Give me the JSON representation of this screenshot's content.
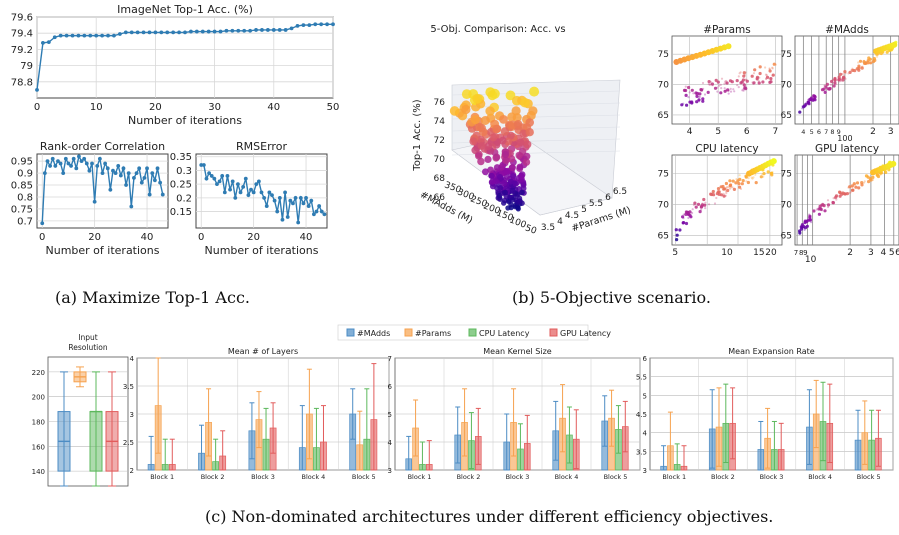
{
  "captions": {
    "a": "(a) Maximize Top-1 Acc.",
    "b": "(b) 5-Objective scenario.",
    "c": "(c) Non-dominated architectures under different efficiency objectives."
  },
  "colors": {
    "line": "#2f7cb3",
    "mAdds": "#4c8cc4",
    "params": "#f6a24f",
    "cpu": "#5cb85c",
    "gpu": "#e25c5c",
    "scatter_low": "#3b1f8a",
    "scatter_high": "#fcd23a"
  },
  "chart_data": [
    {
      "id": "top1",
      "type": "line",
      "title": "ImageNet Top-1 Acc. (%)",
      "xlabel": "Number of iterations",
      "ylabel": "",
      "xlim": [
        0,
        50
      ],
      "ylim": [
        78.6,
        79.6
      ],
      "xticks": [
        0,
        10,
        20,
        30,
        40,
        50
      ],
      "yticks": [
        78.8,
        79,
        79.2,
        79.4,
        79.6
      ],
      "ytick_labels": [
        "78.8",
        "79",
        "79.2",
        "79.4",
        "79.6"
      ],
      "x": [
        0,
        1,
        2,
        3,
        4,
        5,
        6,
        7,
        8,
        9,
        10,
        11,
        12,
        13,
        14,
        15,
        16,
        17,
        18,
        19,
        20,
        21,
        22,
        23,
        24,
        25,
        26,
        27,
        28,
        29,
        30,
        31,
        32,
        33,
        34,
        35,
        36,
        37,
        38,
        39,
        40,
        41,
        42,
        43,
        44,
        45,
        46,
        47,
        48,
        49,
        50
      ],
      "values": [
        78.7,
        79.28,
        79.29,
        79.35,
        79.37,
        79.37,
        79.37,
        79.37,
        79.37,
        79.37,
        79.37,
        79.37,
        79.37,
        79.37,
        79.39,
        79.41,
        79.41,
        79.41,
        79.41,
        79.41,
        79.41,
        79.41,
        79.41,
        79.41,
        79.41,
        79.41,
        79.42,
        79.42,
        79.42,
        79.42,
        79.42,
        79.42,
        79.43,
        79.43,
        79.43,
        79.43,
        79.43,
        79.44,
        79.44,
        79.44,
        79.44,
        79.44,
        79.44,
        79.46,
        79.49,
        79.5,
        79.5,
        79.51,
        79.51,
        79.51,
        79.51
      ],
      "grid": true
    },
    {
      "id": "rank",
      "type": "line",
      "title": "Rank-order Correlation",
      "xlabel": "Number of iterations",
      "ylabel": "",
      "xlim": [
        -2,
        48
      ],
      "ylim": [
        0.67,
        0.98
      ],
      "xticks": [
        0,
        20,
        40
      ],
      "yticks": [
        0.7,
        0.75,
        0.8,
        0.85,
        0.9,
        0.95
      ],
      "ytick_labels": [
        "0.7",
        "0.75",
        "0.8",
        "0.85",
        "0.9",
        "0.95"
      ],
      "values": [
        0.69,
        0.9,
        0.95,
        0.93,
        0.96,
        0.93,
        0.95,
        0.94,
        0.9,
        0.96,
        0.94,
        0.93,
        0.96,
        0.92,
        0.97,
        0.95,
        0.96,
        0.94,
        0.91,
        0.94,
        0.78,
        0.93,
        0.96,
        0.9,
        0.94,
        0.92,
        0.83,
        0.91,
        0.9,
        0.93,
        0.89,
        0.92,
        0.85,
        0.9,
        0.76,
        0.88,
        0.9,
        0.92,
        0.86,
        0.88,
        0.92,
        0.81,
        0.9,
        0.87,
        0.92,
        0.86,
        0.81
      ],
      "grid": true
    },
    {
      "id": "rmse",
      "type": "line",
      "title": "RMSError",
      "xlabel": "Number of iterations",
      "ylabel": "",
      "xlim": [
        -2,
        48
      ],
      "ylim": [
        0.09,
        0.36
      ],
      "xticks": [
        0,
        20,
        40
      ],
      "yticks": [
        0.15,
        0.2,
        0.25,
        0.3,
        0.35
      ],
      "ytick_labels": [
        "0.15",
        "0.2",
        "0.25",
        "0.3",
        "0.35"
      ],
      "values": [
        0.32,
        0.32,
        0.27,
        0.29,
        0.28,
        0.27,
        0.25,
        0.26,
        0.28,
        0.22,
        0.28,
        0.23,
        0.26,
        0.2,
        0.25,
        0.22,
        0.24,
        0.27,
        0.21,
        0.23,
        0.22,
        0.25,
        0.26,
        0.22,
        0.2,
        0.17,
        0.22,
        0.21,
        0.19,
        0.15,
        0.2,
        0.12,
        0.22,
        0.13,
        0.19,
        0.18,
        0.2,
        0.11,
        0.2,
        0.18,
        0.2,
        0.17,
        0.19,
        0.14,
        0.15,
        0.17,
        0.15,
        0.14
      ],
      "grid": true
    },
    {
      "id": "scatter3d",
      "type": "scatter",
      "title": "5-Obj. Comparison: Acc. vs",
      "zlabel": "Top-1 Acc. (%)",
      "xlabel": "#Params (M)",
      "ylabel": "#MAdds (M)",
      "ztick_labels": [
        "66",
        "68",
        "70",
        "72",
        "74",
        "76"
      ],
      "xtick_labels": [
        "3.5",
        "4",
        "4.5",
        "5",
        "5.5",
        "6",
        "6.5"
      ],
      "ytick_labels": [
        "350",
        "300",
        "250",
        "200",
        "150",
        "100",
        "50"
      ]
    },
    {
      "id": "params",
      "type": "scatter",
      "title": "#Params",
      "xticks": [
        4,
        5,
        6,
        7
      ],
      "yticks": [
        65,
        70,
        75
      ],
      "xlim": [
        3.4,
        7.2
      ],
      "ylim": [
        63.5,
        78
      ]
    },
    {
      "id": "madds",
      "type": "scatter",
      "title": "#MAdds",
      "log_x": true,
      "xtick_labels": [
        "4",
        "5",
        "6",
        "7",
        "8",
        "9",
        "100",
        "2",
        "3"
      ],
      "yticks": [
        65,
        70,
        75
      ],
      "ylim": [
        63.5,
        78
      ]
    },
    {
      "id": "cpu",
      "type": "scatter",
      "title": "CPU latency",
      "xticks": [
        5,
        10,
        15,
        20
      ],
      "yticks": [
        65,
        70,
        75
      ],
      "xlim": [
        4.5,
        22
      ],
      "ylim": [
        63.5,
        78
      ]
    },
    {
      "id": "gpu",
      "type": "scatter",
      "title": "GPU latency",
      "log_x": true,
      "xtick_labels": [
        "7",
        "8",
        "9",
        "10",
        "2",
        "3",
        "4",
        "5",
        "6"
      ],
      "yticks": [
        65,
        70,
        75
      ],
      "ylim": [
        63.5,
        78
      ]
    },
    {
      "id": "resolution",
      "type": "box",
      "title": "Input\nResolution",
      "yticks": [
        140,
        160,
        180,
        200,
        220
      ],
      "ylim": [
        128,
        232
      ],
      "boxes": [
        {
          "name": "#MAdds",
          "min": 128,
          "q1": 140,
          "median": 164,
          "q3": 188,
          "max": 220
        },
        {
          "name": "#Params",
          "min": 208,
          "q1": 212,
          "median": 216,
          "q3": 220,
          "max": 224
        },
        {
          "name": "CPU Latency",
          "min": 128,
          "q1": 140,
          "median": 188,
          "q3": 188,
          "max": 220
        },
        {
          "name": "GPU Latency",
          "min": 128,
          "q1": 140,
          "median": 164,
          "q3": 188,
          "max": 220
        }
      ]
    },
    {
      "id": "layers",
      "type": "bar",
      "title": "Mean # of Layers",
      "categories": [
        "Block 1",
        "Block 2",
        "Block 3",
        "Block 4",
        "Block 5"
      ],
      "ylim": [
        2,
        4
      ],
      "yticks": [
        2,
        2.5,
        3,
        3.5,
        4
      ],
      "series": [
        {
          "name": "#MAdds",
          "values": [
            2.1,
            2.3,
            2.7,
            2.4,
            3.0
          ],
          "err": [
            0.5,
            0.5,
            0.5,
            0.75,
            0.45
          ]
        },
        {
          "name": "#Params",
          "values": [
            3.15,
            2.85,
            2.9,
            3.0,
            2.45
          ],
          "err": [
            0.85,
            0.6,
            0.5,
            0.8,
            0.6
          ]
        },
        {
          "name": "CPU Latency",
          "values": [
            2.1,
            2.15,
            2.55,
            2.4,
            2.55
          ],
          "err": [
            0.45,
            0.4,
            0.55,
            0.7,
            0.9
          ]
        },
        {
          "name": "GPU Latency",
          "values": [
            2.1,
            2.25,
            2.75,
            2.5,
            2.9
          ],
          "err": [
            0.45,
            0.45,
            0.45,
            0.65,
            1.0
          ]
        }
      ]
    },
    {
      "id": "kernel",
      "type": "bar",
      "title": "Mean Kernel Size",
      "categories": [
        "Block 1",
        "Block 2",
        "Block 3",
        "Block 4",
        "Block 5"
      ],
      "ylim": [
        3,
        7
      ],
      "yticks": [
        3,
        4,
        5,
        6,
        7
      ],
      "series": [
        {
          "name": "#MAdds",
          "values": [
            3.4,
            4.25,
            4.0,
            4.4,
            4.75
          ],
          "err": [
            0.8,
            1.0,
            1.0,
            1.05,
            0.9
          ]
        },
        {
          "name": "#Params",
          "values": [
            4.5,
            4.7,
            4.7,
            4.85,
            4.85
          ],
          "err": [
            1.0,
            1.2,
            1.2,
            1.2,
            1.0
          ]
        },
        {
          "name": "CPU Latency",
          "values": [
            3.2,
            4.05,
            3.75,
            4.25,
            4.45
          ],
          "err": [
            0.8,
            1.0,
            0.9,
            1.0,
            0.85
          ]
        },
        {
          "name": "GPU Latency",
          "values": [
            3.2,
            4.2,
            3.95,
            4.1,
            4.55
          ],
          "err": [
            0.85,
            1.0,
            1.0,
            1.05,
            0.9
          ]
        }
      ]
    },
    {
      "id": "expansion",
      "type": "bar",
      "title": "Mean Expansion Rate",
      "categories": [
        "Block 1",
        "Block 2",
        "Block 3",
        "Block 4",
        "Block 5"
      ],
      "ylim": [
        3,
        6
      ],
      "yticks": [
        3,
        3.5,
        4,
        4.5,
        5,
        5.5,
        6
      ],
      "series": [
        {
          "name": "#MAdds",
          "values": [
            3.1,
            4.1,
            3.55,
            4.15,
            3.8
          ],
          "err": [
            0.55,
            1.05,
            0.75,
            1.0,
            0.8
          ]
        },
        {
          "name": "#Params",
          "values": [
            3.65,
            4.15,
            3.85,
            4.5,
            4.0
          ],
          "err": [
            0.9,
            1.05,
            0.8,
            0.9,
            0.85
          ]
        },
        {
          "name": "CPU Latency",
          "values": [
            3.15,
            4.25,
            3.55,
            4.3,
            3.8
          ],
          "err": [
            0.55,
            1.05,
            0.75,
            1.05,
            0.8
          ]
        },
        {
          "name": "GPU Latency",
          "values": [
            3.1,
            4.25,
            3.55,
            4.25,
            3.85
          ],
          "err": [
            0.55,
            0.95,
            0.7,
            1.05,
            0.75
          ]
        }
      ]
    },
    {
      "id": "legend",
      "type": "legend",
      "entries": [
        "#MAdds",
        "#Params",
        "CPU Latency",
        "GPU Latency"
      ]
    }
  ]
}
